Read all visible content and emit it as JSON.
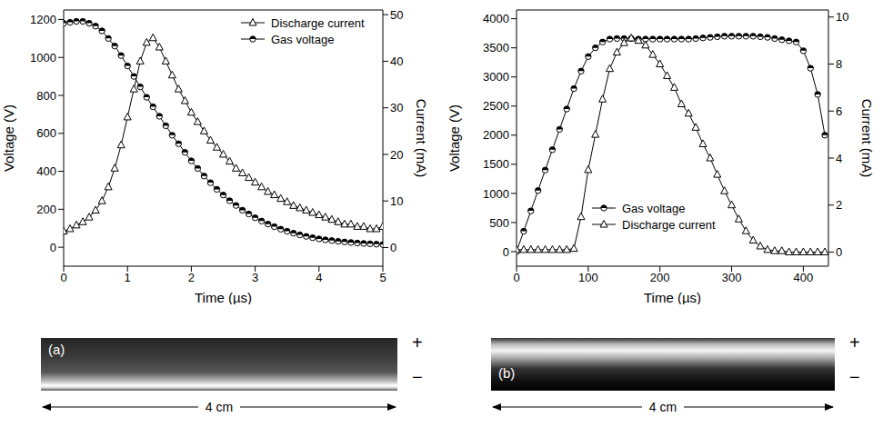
{
  "chart_data": [
    {
      "type": "line",
      "x_label": "Time (µs)",
      "y_label": "Voltage (V)",
      "y2_label": "Current (mA)",
      "legend": "upper right",
      "grid": false,
      "xlim": [
        0,
        5
      ],
      "xticks": [
        0,
        1,
        2,
        3,
        4,
        5
      ],
      "ylim": [
        -100,
        1250
      ],
      "yticks": [
        0,
        200,
        400,
        600,
        800,
        1000,
        1200
      ],
      "y2lim": [
        -4,
        51
      ],
      "y2ticks": [
        0,
        10,
        20,
        30,
        40,
        50
      ],
      "x": [
        0,
        0.1,
        0.2,
        0.3,
        0.4,
        0.5,
        0.6,
        0.7,
        0.8,
        0.9,
        1,
        1.1,
        1.2,
        1.3,
        1.4,
        1.5,
        1.6,
        1.7,
        1.8,
        1.9,
        2,
        2.1,
        2.2,
        2.3,
        2.4,
        2.5,
        2.6,
        2.7,
        2.8,
        2.9,
        3,
        3.1,
        3.2,
        3.3,
        3.4,
        3.5,
        3.6,
        3.7,
        3.8,
        3.9,
        4,
        4.1,
        4.2,
        4.3,
        4.4,
        4.5,
        4.6,
        4.7,
        4.8,
        4.9,
        5
      ],
      "series": [
        {
          "name": "Discharge current",
          "color": "#000000",
          "axis": "y2",
          "marker": "triangle",
          "values": [
            3.5,
            4,
            4.8,
            5.5,
            6.5,
            8,
            10,
            13,
            17,
            22,
            28,
            34,
            40,
            44,
            45,
            43,
            40,
            37,
            34,
            31.5,
            29,
            27,
            25,
            23,
            21.5,
            20,
            18.5,
            17,
            16,
            15,
            14,
            13,
            12,
            11.3,
            10.5,
            9.8,
            9,
            8.5,
            8,
            7.5,
            7,
            6.5,
            6,
            5.5,
            5,
            5,
            4.5,
            4.5,
            4,
            4,
            4.5
          ]
        },
        {
          "name": "Gas voltage",
          "color": "#000000",
          "marker": "circle",
          "values": [
            1180,
            1185,
            1190,
            1190,
            1180,
            1165,
            1140,
            1100,
            1060,
            1010,
            955,
            900,
            845,
            790,
            740,
            690,
            640,
            590,
            545,
            500,
            455,
            415,
            375,
            340,
            305,
            275,
            245,
            220,
            195,
            175,
            155,
            138,
            122,
            108,
            95,
            84,
            74,
            65,
            57,
            50,
            44,
            39,
            35,
            31,
            28,
            25,
            22,
            20,
            18,
            16,
            14
          ]
        }
      ]
    },
    {
      "type": "line",
      "x_label": "Time (µs)",
      "y_label": "Voltage (V)",
      "y2_label": "Current (mA)",
      "legend": "lower center",
      "grid": false,
      "xlim": [
        0,
        435
      ],
      "xticks": [
        0,
        100,
        200,
        300,
        400
      ],
      "ylim": [
        -250,
        4150
      ],
      "yticks": [
        0,
        500,
        1000,
        1500,
        2000,
        2500,
        3000,
        3500,
        4000
      ],
      "y2lim": [
        -0.6,
        10.3
      ],
      "y2ticks": [
        0,
        2,
        4,
        6,
        8,
        10
      ],
      "x": [
        0,
        10,
        20,
        30,
        40,
        50,
        60,
        70,
        80,
        90,
        100,
        110,
        120,
        130,
        140,
        150,
        160,
        170,
        180,
        190,
        200,
        210,
        220,
        230,
        240,
        250,
        260,
        270,
        280,
        290,
        300,
        310,
        320,
        330,
        340,
        350,
        360,
        370,
        380,
        390,
        400,
        410,
        420,
        430
      ],
      "series": [
        {
          "name": "Gas voltage",
          "color": "#000000",
          "marker": "circle",
          "values": [
            0,
            350,
            700,
            1050,
            1400,
            1750,
            2100,
            2450,
            2800,
            3100,
            3350,
            3500,
            3600,
            3650,
            3660,
            3660,
            3660,
            3650,
            3650,
            3650,
            3650,
            3650,
            3650,
            3650,
            3650,
            3660,
            3670,
            3680,
            3690,
            3700,
            3700,
            3700,
            3700,
            3700,
            3690,
            3680,
            3660,
            3640,
            3620,
            3600,
            3450,
            3150,
            2700,
            2000
          ]
        },
        {
          "name": "Discharge current",
          "color": "#000000",
          "axis": "y2",
          "marker": "triangle",
          "values": [
            0.1,
            0.1,
            0.1,
            0.1,
            0.1,
            0.1,
            0.1,
            0.1,
            0.15,
            1.5,
            3.5,
            5,
            6.5,
            7.8,
            8.5,
            8.9,
            9.1,
            9,
            8.8,
            8.4,
            8,
            7.5,
            7,
            6.3,
            5.9,
            5.3,
            4.6,
            4,
            3.3,
            2.6,
            2,
            1.4,
            0.9,
            0.5,
            0.25,
            0.1,
            0.05,
            0.05,
            0,
            0,
            0,
            0,
            0,
            0
          ]
        }
      ]
    }
  ],
  "photos": [
    {
      "label": "(a)",
      "anode": "+",
      "cathode": "−",
      "scale": "4 cm"
    },
    {
      "label": "(b)",
      "anode": "+",
      "cathode": "−",
      "scale": "4 cm"
    }
  ]
}
